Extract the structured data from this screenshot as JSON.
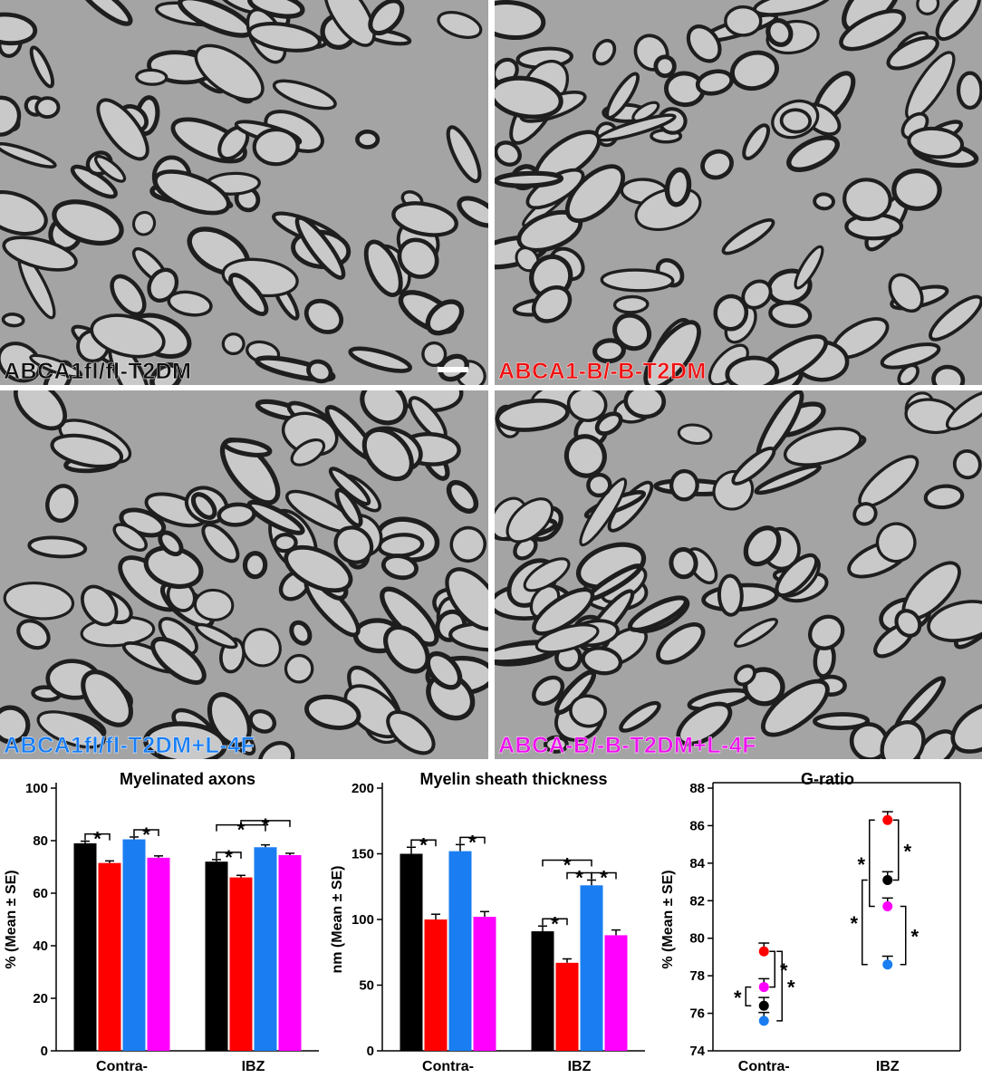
{
  "micrographs": [
    {
      "label": "ABCA1fl/fl-T2DM",
      "color": "#111111"
    },
    {
      "label": "ABCA1-B/-B-T2DM",
      "color": "#ee1111"
    },
    {
      "label": "ABCA1fl/fl-T2DM+L-4F",
      "color": "#1a7ef2"
    },
    {
      "label": "ABCA-B/-B-T2DM+L-4F",
      "color": "#ee11ee"
    }
  ],
  "group_colors": [
    "#000000",
    "#ff0000",
    "#1a7ef2",
    "#ff00ff"
  ],
  "chart_data": [
    {
      "type": "bar",
      "title": "Myelinated axons",
      "ylabel": "% (Mean ± SE)",
      "xlabel": "",
      "categories": [
        "Contra-",
        "IBZ"
      ],
      "ylim": [
        0,
        100
      ],
      "yticks": [
        0,
        20,
        40,
        60,
        80,
        100
      ],
      "series": [
        {
          "values": [
            79,
            72
          ],
          "errors": [
            0.8,
            0.8
          ]
        },
        {
          "values": [
            71.5,
            66
          ],
          "errors": [
            0.8,
            0.8
          ]
        },
        {
          "values": [
            80.5,
            77.5
          ],
          "errors": [
            0.9,
            0.9
          ]
        },
        {
          "values": [
            73.5,
            74.5
          ],
          "errors": [
            0.7,
            0.7
          ]
        }
      ],
      "significance": [
        {
          "category": "Contra-",
          "pair": [
            0,
            1
          ],
          "label": "*"
        },
        {
          "category": "Contra-",
          "pair": [
            2,
            3
          ],
          "label": "*"
        },
        {
          "category": "IBZ",
          "pair": [
            0,
            1
          ],
          "label": "*"
        },
        {
          "category": "IBZ",
          "pair": [
            0,
            2
          ],
          "label": "*"
        },
        {
          "category": "IBZ",
          "pair": [
            1,
            3
          ],
          "label": "*"
        }
      ]
    },
    {
      "type": "bar",
      "title": "Myelin sheath thickness",
      "ylabel": "nm (Mean ± SE)",
      "xlabel": "",
      "categories": [
        "Contra-",
        "IBZ"
      ],
      "ylim": [
        0,
        200
      ],
      "yticks": [
        0,
        50,
        100,
        150,
        200
      ],
      "series": [
        {
          "values": [
            150,
            91
          ],
          "errors": [
            5,
            4
          ]
        },
        {
          "values": [
            100,
            67
          ],
          "errors": [
            4,
            3
          ]
        },
        {
          "values": [
            152,
            126
          ],
          "errors": [
            5,
            4
          ]
        },
        {
          "values": [
            102,
            88
          ],
          "errors": [
            4,
            4
          ]
        }
      ],
      "significance": [
        {
          "category": "Contra-",
          "pair": [
            0,
            1
          ],
          "label": "*"
        },
        {
          "category": "Contra-",
          "pair": [
            2,
            3
          ],
          "label": "*"
        },
        {
          "category": "IBZ",
          "pair": [
            0,
            1
          ],
          "label": "*"
        },
        {
          "category": "IBZ",
          "pair": [
            0,
            2
          ],
          "label": "*"
        },
        {
          "category": "IBZ",
          "pair": [
            2,
            3
          ],
          "label": "*"
        },
        {
          "category": "IBZ",
          "pair": [
            1,
            2
          ],
          "label": "*"
        }
      ]
    },
    {
      "type": "scatter",
      "title": "G-ratio",
      "ylabel": "% (Mean ± SE)",
      "xlabel": "",
      "categories": [
        "Contra-",
        "IBZ"
      ],
      "ylim": [
        74,
        88
      ],
      "yticks": [
        74,
        76,
        78,
        80,
        82,
        84,
        86,
        88
      ],
      "series": [
        {
          "values": [
            76.4,
            83.1
          ],
          "errors": [
            0.25,
            0.25
          ]
        },
        {
          "values": [
            79.3,
            86.3
          ],
          "errors": [
            0.25,
            0.25
          ]
        },
        {
          "values": [
            75.6,
            78.6
          ],
          "errors": [
            0.25,
            0.25
          ]
        },
        {
          "values": [
            77.4,
            81.7
          ],
          "errors": [
            0.25,
            0.25
          ]
        }
      ],
      "significance": [
        {
          "category": "Contra-",
          "pair": [
            1,
            3
          ],
          "label": "*"
        },
        {
          "category": "Contra-",
          "pair": [
            3,
            0
          ],
          "label": "*"
        },
        {
          "category": "Contra-",
          "pair": [
            1,
            2
          ],
          "label": "*"
        },
        {
          "category": "IBZ",
          "pair": [
            1,
            0
          ],
          "label": "*"
        },
        {
          "category": "IBZ",
          "pair": [
            1,
            3
          ],
          "label": "*"
        },
        {
          "category": "IBZ",
          "pair": [
            3,
            2
          ],
          "label": "*"
        },
        {
          "category": "IBZ",
          "pair": [
            0,
            2
          ],
          "label": "*"
        }
      ]
    }
  ]
}
